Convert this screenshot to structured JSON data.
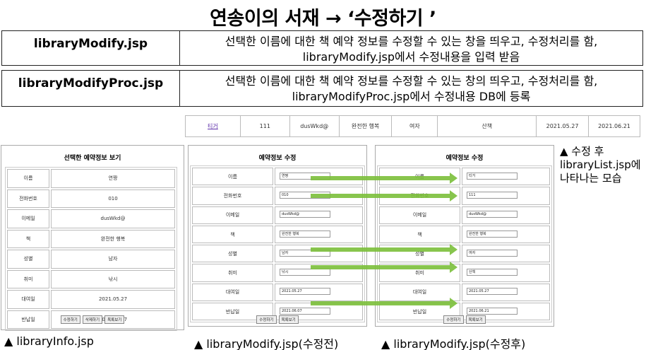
{
  "title": "연송이의 서재 → ‘수정하기 ’",
  "rows": [
    {
      "name": "libraryModify.jsp",
      "text1": "선택한 이름에 대한 책 예약 정보를 수정할 수 있는 창을 띄우고, 수정처리를 함,",
      "text2": "libraryModify.jsp에서 수정내용을 입력 받음"
    },
    {
      "name": "libraryModifyProc.jsp",
      "text1": "선택한 이름에 대한 책 예약 정보를 수정할 수 있는 창의 띄우고, 수정처리를 함,",
      "text2": "libraryModifyProc.jsp에서 수정내용 DB에 등록"
    }
  ],
  "list_row": [
    "티거",
    "111",
    "dusWkd@",
    "완전한 행복",
    "여자",
    "산책",
    "2021.05.27",
    "2021.06.21"
  ],
  "labels": [
    "이름",
    "전화번호",
    "이메일",
    "책",
    "성별",
    "취미",
    "대여일",
    "반납일"
  ],
  "info": {
    "title": "선택한 예약정보 보기",
    "values": [
      "연짱",
      "010",
      "dusWkd@",
      "완전한 행복",
      "남자",
      "낚시",
      "2021.05.27",
      "2021.06.07"
    ],
    "buttons": [
      "수정하기",
      "삭제하기",
      "목록보기"
    ],
    "caption": "▲ libraryInfo.jsp"
  },
  "before": {
    "title": "예약정보 수정",
    "values": [
      "연짱",
      "010",
      "dusWkd@",
      "완전한 행복",
      "남자",
      "낚시",
      "2021.05.27",
      "2021.06.07"
    ],
    "buttons": [
      "수정하기",
      "목록보기"
    ],
    "caption": "▲ libraryModify.jsp(수정전)"
  },
  "after": {
    "title": "예약정보 수정",
    "values": [
      "티거",
      "111",
      "dusWkd@",
      "완전한 행복",
      "여자",
      "산책",
      "2021.05.27",
      "2021.06.21"
    ],
    "buttons": [
      "수정하기",
      "목록보기"
    ],
    "caption": "▲ libraryModify.jsp(수정후)"
  },
  "note": [
    "▲ 수정 후",
    "libraryList.jsp에",
    "나타나는 모습"
  ],
  "colors": {
    "arrow": "#7bbf3a",
    "link": "#5a2aa8"
  }
}
